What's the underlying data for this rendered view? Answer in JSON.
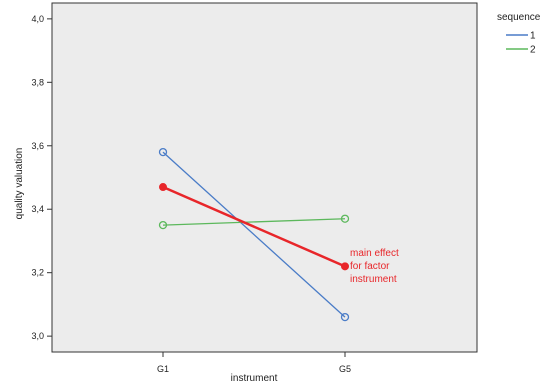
{
  "chart_data": {
    "type": "line",
    "xlabel": "instrument",
    "ylabel": "quality valuation",
    "categories": [
      "G1",
      "G5"
    ],
    "ylim": [
      2.95,
      4.05
    ],
    "yticks": [
      "3,0",
      "3,2",
      "3,4",
      "3,6",
      "3,8",
      "4,0"
    ],
    "ytick_values": [
      3.0,
      3.2,
      3.4,
      3.6,
      3.8,
      4.0
    ],
    "legend_title": "sequence",
    "legend_position": "top-right",
    "series": [
      {
        "name": "1",
        "values": [
          3.58,
          3.06
        ],
        "color": "#4a7cc7",
        "marker": "open-circle"
      },
      {
        "name": "2",
        "values": [
          3.35,
          3.37
        ],
        "color": "#5cb85c",
        "marker": "open-circle"
      }
    ],
    "main_effect": {
      "values": [
        3.47,
        3.22
      ],
      "color": "#e8262a",
      "marker": "filled-circle",
      "label_lines": [
        "main effect",
        "for factor",
        "instrument"
      ]
    },
    "plot_background": "#ececec",
    "grid": false
  }
}
